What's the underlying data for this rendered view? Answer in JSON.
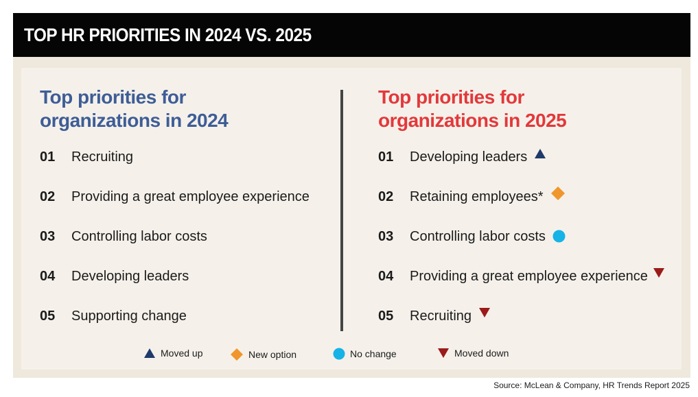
{
  "title": "TOP HR PRIORITIES IN 2024 VS. 2025",
  "colors": {
    "heading_2024": "#3e5d97",
    "heading_2025": "#e3383b",
    "moved_up": "#1f3a6b",
    "new_option": "#f0962c",
    "no_change": "#16b3e6",
    "moved_down": "#9b1b1b"
  },
  "left": {
    "heading_line1": "Top priorities for",
    "heading_line2": "organizations in 2024",
    "items": [
      {
        "num": "01",
        "label": "Recruiting"
      },
      {
        "num": "02",
        "label": "Providing a great employee experience"
      },
      {
        "num": "03",
        "label": "Controlling labor costs"
      },
      {
        "num": "04",
        "label": "Developing leaders"
      },
      {
        "num": "05",
        "label": "Supporting change"
      }
    ]
  },
  "right": {
    "heading_line1": "Top priorities for",
    "heading_line2": "organizations in 2025",
    "items": [
      {
        "num": "01",
        "label": "Developing leaders",
        "status": "moved-up-icon"
      },
      {
        "num": "02",
        "label": "Retaining employees*",
        "status": "new-option-icon"
      },
      {
        "num": "03",
        "label": "Controlling labor costs",
        "status": "no-change-icon"
      },
      {
        "num": "04",
        "label": "Providing a great employee experience",
        "status": "moved-down-icon"
      },
      {
        "num": "05",
        "label": "Recruiting",
        "status": "moved-down-icon"
      }
    ]
  },
  "legend": {
    "moved_up": "Moved up",
    "new_option": "New option",
    "no_change": "No change",
    "moved_down": "Moved down"
  },
  "source": "Source: McLean & Company, HR Trends Report 2025"
}
